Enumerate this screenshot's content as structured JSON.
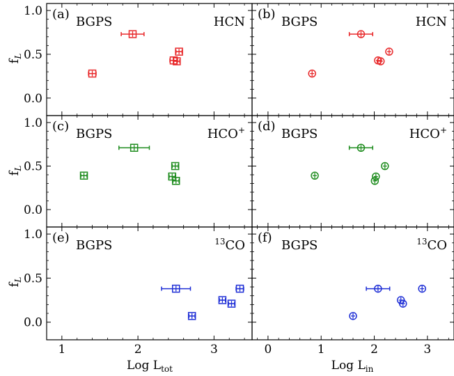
{
  "figure": {
    "xlabels": [
      {
        "main": "Log L",
        "sub": "tot"
      },
      {
        "main": "Log L",
        "sub": "in"
      }
    ],
    "ylabel": {
      "main": "f",
      "sub": "L"
    },
    "yticks": [
      "0.0",
      "0.5",
      "1.0"
    ],
    "xticks_left": [
      "1",
      "2",
      "3"
    ],
    "xticks_right": [
      "0",
      "1",
      "2",
      "3"
    ]
  },
  "colors": {
    "HCN": "#e8282a",
    "HCO+": "#1e8c1e",
    "13CO": "#1f2fd6"
  },
  "chart_data": [
    {
      "type": "scatter",
      "panel": "(a)",
      "label_left": "BGPS",
      "tracer": {
        "base": "HCN",
        "sup": "",
        "pre": ""
      },
      "color_key": "HCN",
      "marker": "square",
      "xlim": [
        0.8,
        3.5
      ],
      "ylim": [
        -0.2,
        1.08
      ],
      "points": [
        {
          "x": 1.4,
          "y": 0.28,
          "xerr": 0.05
        },
        {
          "x": 1.93,
          "y": 0.73,
          "xerr": 0.15
        },
        {
          "x": 2.47,
          "y": 0.43,
          "xerr": 0.05
        },
        {
          "x": 2.51,
          "y": 0.42,
          "xerr": 0.04
        },
        {
          "x": 2.54,
          "y": 0.53,
          "xerr": 0.04
        }
      ]
    },
    {
      "type": "scatter",
      "panel": "(b)",
      "label_left": "BGPS",
      "tracer": {
        "base": "HCN",
        "sup": "",
        "pre": ""
      },
      "color_key": "HCN",
      "marker": "circle",
      "xlim": [
        -0.3,
        3.5
      ],
      "ylim": [
        -0.2,
        1.08
      ],
      "points": [
        {
          "x": 0.83,
          "y": 0.28,
          "xerr": 0.0
        },
        {
          "x": 1.75,
          "y": 0.73,
          "xerr": 0.22
        },
        {
          "x": 2.07,
          "y": 0.43,
          "xerr": 0.0
        },
        {
          "x": 2.12,
          "y": 0.42,
          "xerr": 0.0
        },
        {
          "x": 2.28,
          "y": 0.53,
          "xerr": 0.0
        }
      ]
    },
    {
      "type": "scatter",
      "panel": "(c)",
      "label_left": "BGPS",
      "tracer": {
        "base": "HCO",
        "sup": "+",
        "pre": ""
      },
      "color_key": "HCO+",
      "marker": "square",
      "xlim": [
        0.8,
        3.5
      ],
      "ylim": [
        -0.2,
        1.08
      ],
      "points": [
        {
          "x": 1.29,
          "y": 0.39,
          "xerr": 0.04
        },
        {
          "x": 1.95,
          "y": 0.71,
          "xerr": 0.2
        },
        {
          "x": 2.45,
          "y": 0.38,
          "xerr": 0.04
        },
        {
          "x": 2.49,
          "y": 0.5,
          "xerr": 0.04
        },
        {
          "x": 2.5,
          "y": 0.33,
          "xerr": 0.04
        }
      ]
    },
    {
      "type": "scatter",
      "panel": "(d)",
      "label_left": "BGPS",
      "tracer": {
        "base": "HCO",
        "sup": "+",
        "pre": ""
      },
      "color_key": "HCO+",
      "marker": "circle",
      "xlim": [
        -0.3,
        3.5
      ],
      "ylim": [
        -0.2,
        1.08
      ],
      "points": [
        {
          "x": 0.88,
          "y": 0.39,
          "xerr": 0.0
        },
        {
          "x": 1.75,
          "y": 0.71,
          "xerr": 0.22
        },
        {
          "x": 2.01,
          "y": 0.33,
          "xerr": 0.0
        },
        {
          "x": 2.03,
          "y": 0.38,
          "xerr": 0.0
        },
        {
          "x": 2.2,
          "y": 0.5,
          "xerr": 0.0
        }
      ]
    },
    {
      "type": "scatter",
      "panel": "(e)",
      "label_left": "BGPS",
      "tracer": {
        "base": "CO",
        "sup": "",
        "pre": "13"
      },
      "color_key": "13CO",
      "marker": "square",
      "xlim": [
        0.8,
        3.5
      ],
      "ylim": [
        -0.2,
        1.08
      ],
      "points": [
        {
          "x": 2.5,
          "y": 0.38,
          "xerr": 0.19
        },
        {
          "x": 2.71,
          "y": 0.07,
          "xerr": 0.04
        },
        {
          "x": 3.11,
          "y": 0.25,
          "xerr": 0.04
        },
        {
          "x": 3.23,
          "y": 0.21,
          "xerr": 0.04
        },
        {
          "x": 3.34,
          "y": 0.38,
          "xerr": 0.05
        }
      ]
    },
    {
      "type": "scatter",
      "panel": "(f)",
      "label_left": "BGPS",
      "tracer": {
        "base": "CO",
        "sup": "",
        "pre": "13"
      },
      "color_key": "13CO",
      "marker": "circle",
      "xlim": [
        -0.3,
        3.5
      ],
      "ylim": [
        -0.2,
        1.08
      ],
      "points": [
        {
          "x": 1.6,
          "y": 0.07,
          "xerr": 0.0
        },
        {
          "x": 2.07,
          "y": 0.38,
          "xerr": 0.22
        },
        {
          "x": 2.5,
          "y": 0.25,
          "xerr": 0.0
        },
        {
          "x": 2.54,
          "y": 0.21,
          "xerr": 0.0
        },
        {
          "x": 2.9,
          "y": 0.38,
          "xerr": 0.0
        }
      ]
    }
  ]
}
